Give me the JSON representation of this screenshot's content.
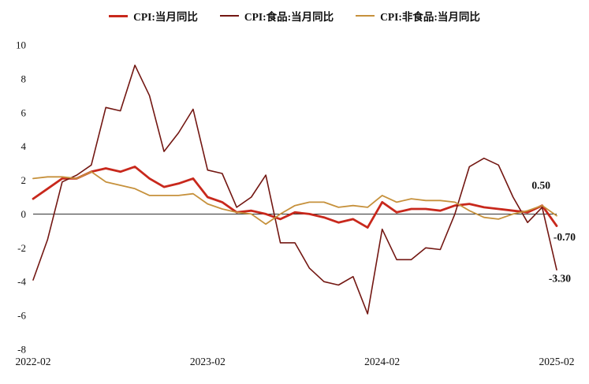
{
  "chart_data": {
    "type": "line",
    "title": "",
    "x": [
      "2022-02",
      "2022-03",
      "2022-04",
      "2022-05",
      "2022-06",
      "2022-07",
      "2022-08",
      "2022-09",
      "2022-10",
      "2022-11",
      "2022-12",
      "2023-01",
      "2023-02",
      "2023-03",
      "2023-04",
      "2023-05",
      "2023-06",
      "2023-07",
      "2023-08",
      "2023-09",
      "2023-10",
      "2023-11",
      "2023-12",
      "2024-01",
      "2024-02",
      "2024-03",
      "2024-04",
      "2024-05",
      "2024-06",
      "2024-07",
      "2024-08",
      "2024-09",
      "2024-10",
      "2024-11",
      "2024-12",
      "2025-01",
      "2025-02"
    ],
    "x_tick_indices": [
      0,
      12,
      24,
      36
    ],
    "x_tick_labels": [
      "2022-02",
      "2023-02",
      "2024-02",
      "2025-02"
    ],
    "y_ticks": [
      10,
      8,
      6,
      4,
      2,
      0,
      -2,
      -4,
      -6,
      -8
    ],
    "ylim": [
      -8,
      10
    ],
    "grid": false,
    "zero_line": true,
    "legend_position": "top",
    "series": [
      {
        "name": "CPI:当月同比",
        "color": "#c8281c",
        "width": 2.8,
        "values": [
          0.9,
          1.5,
          2.1,
          2.1,
          2.5,
          2.7,
          2.5,
          2.8,
          2.1,
          1.6,
          1.8,
          2.1,
          1.0,
          0.7,
          0.1,
          0.2,
          0.0,
          -0.3,
          0.1,
          0.0,
          -0.2,
          -0.5,
          -0.3,
          -0.8,
          0.7,
          0.1,
          0.3,
          0.3,
          0.2,
          0.5,
          0.6,
          0.4,
          0.3,
          0.2,
          0.1,
          0.5,
          -0.7
        ]
      },
      {
        "name": "CPI:食品:当月同比",
        "color": "#731712",
        "width": 1.6,
        "values": [
          -3.9,
          -1.5,
          1.9,
          2.3,
          2.9,
          6.3,
          6.1,
          8.8,
          7.0,
          3.7,
          4.8,
          6.2,
          2.6,
          2.4,
          0.4,
          1.0,
          2.3,
          -1.7,
          -1.7,
          -3.2,
          -4.0,
          -4.2,
          -3.7,
          -5.9,
          -0.9,
          -2.7,
          -2.7,
          -2.0,
          -2.1,
          0.0,
          2.8,
          3.3,
          2.9,
          1.0,
          -0.5,
          0.4,
          -3.3
        ]
      },
      {
        "name": "CPI:非食品:当月同比",
        "color": "#c6913c",
        "width": 1.8,
        "values": [
          2.1,
          2.2,
          2.2,
          2.1,
          2.5,
          1.9,
          1.7,
          1.5,
          1.1,
          1.1,
          1.1,
          1.2,
          0.6,
          0.3,
          0.1,
          0.0,
          -0.6,
          0.0,
          0.5,
          0.7,
          0.7,
          0.4,
          0.5,
          0.4,
          1.1,
          0.7,
          0.9,
          0.8,
          0.8,
          0.7,
          0.2,
          -0.2,
          -0.3,
          0.0,
          0.2,
          0.5,
          -0.1
        ]
      }
    ],
    "annotations": [
      {
        "text": "0.50",
        "y": 1.7,
        "dx": -8
      },
      {
        "text": "-0.70",
        "y": -1.35,
        "dx": 24
      },
      {
        "text": "-3.30",
        "y": -3.8,
        "dx": 18
      }
    ]
  }
}
